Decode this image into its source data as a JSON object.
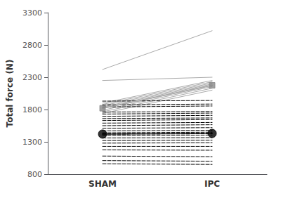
{
  "chart_data": {
    "type": "line",
    "categories": [
      "SHAM",
      "IPC"
    ],
    "ylabel": "Total force (N)",
    "ylim": [
      800,
      3300
    ],
    "yticks": [
      800,
      1300,
      1800,
      2300,
      2800,
      3300
    ],
    "grid": false,
    "background_color": "#ffffff",
    "series": [
      {
        "color": "#aaaaaa",
        "line_style": "solid",
        "values": [
          2420,
          3020
        ]
      },
      {
        "color": "#aaaaaa",
        "line_style": "solid",
        "values": [
          2250,
          2300
        ]
      },
      {
        "color": "#aaaaaa",
        "line_style": "solid",
        "values": [
          1900,
          2250
        ]
      },
      {
        "color": "#aaaaaa",
        "line_style": "solid",
        "values": [
          1880,
          2230
        ]
      },
      {
        "color": "#aaaaaa",
        "line_style": "solid",
        "values": [
          1860,
          2210
        ]
      },
      {
        "color": "#aaaaaa",
        "line_style": "solid",
        "values": [
          1840,
          2195
        ]
      },
      {
        "color": "#aaaaaa",
        "line_style": "solid",
        "values": [
          1815,
          2175
        ]
      },
      {
        "color": "#aaaaaa",
        "line_style": "solid",
        "values": [
          1790,
          2155
        ]
      },
      {
        "color": "#aaaaaa",
        "line_style": "solid",
        "values": [
          1765,
          2130
        ]
      },
      {
        "color": "#aaaaaa",
        "line_style": "solid",
        "values": [
          1740,
          2100
        ]
      },
      {
        "color": "#000000",
        "line_style": "dashed",
        "values": [
          1930,
          1940
        ]
      },
      {
        "color": "#000000",
        "line_style": "dashed",
        "values": [
          1870,
          1885
        ]
      },
      {
        "color": "#000000",
        "line_style": "dashed",
        "values": [
          1840,
          1855
        ]
      },
      {
        "color": "#000000",
        "line_style": "dashed",
        "values": [
          1760,
          1770
        ]
      },
      {
        "color": "#000000",
        "line_style": "dashed",
        "values": [
          1730,
          1745
        ]
      },
      {
        "color": "#000000",
        "line_style": "dashed",
        "values": [
          1695,
          1710
        ]
      },
      {
        "color": "#000000",
        "line_style": "dashed",
        "values": [
          1660,
          1670
        ]
      },
      {
        "color": "#000000",
        "line_style": "dashed",
        "values": [
          1630,
          1645
        ]
      },
      {
        "color": "#000000",
        "line_style": "dashed",
        "values": [
          1590,
          1600
        ]
      },
      {
        "color": "#000000",
        "line_style": "dashed",
        "values": [
          1550,
          1565
        ]
      },
      {
        "color": "#000000",
        "line_style": "dashed",
        "values": [
          1510,
          1520
        ]
      },
      {
        "color": "#000000",
        "line_style": "dashed",
        "values": [
          1470,
          1480
        ]
      },
      {
        "color": "#000000",
        "line_style": "dashed",
        "values": [
          1440,
          1450
        ]
      },
      {
        "color": "#000000",
        "line_style": "dashed",
        "values": [
          1400,
          1405
        ]
      },
      {
        "color": "#000000",
        "line_style": "dashed",
        "values": [
          1360,
          1365
        ]
      },
      {
        "color": "#000000",
        "line_style": "dashed",
        "values": [
          1320,
          1325
        ]
      },
      {
        "color": "#000000",
        "line_style": "dashed",
        "values": [
          1280,
          1285
        ]
      },
      {
        "color": "#000000",
        "line_style": "dashed",
        "values": [
          1230,
          1230
        ]
      },
      {
        "color": "#000000",
        "line_style": "dashed",
        "values": [
          1175,
          1170
        ]
      },
      {
        "color": "#000000",
        "line_style": "dashed",
        "values": [
          1080,
          1070
        ]
      },
      {
        "color": "#000000",
        "line_style": "dashed",
        "values": [
          1010,
          1000
        ]
      },
      {
        "color": "#000000",
        "line_style": "dashed",
        "values": [
          960,
          950
        ]
      },
      {
        "color": "#aaaaaa",
        "line_style": "solid",
        "values": [
          1820,
          2175
        ]
      },
      {
        "type": "scatter",
        "color": "#888888",
        "marker": "square",
        "values": [
          1820,
          2175
        ]
      },
      {
        "color": "#000000",
        "line_style": "dashed",
        "values": [
          1420,
          1430
        ]
      },
      {
        "type": "scatter",
        "color": "#000000",
        "marker": "circle",
        "values": [
          1420,
          1430
        ]
      }
    ]
  }
}
